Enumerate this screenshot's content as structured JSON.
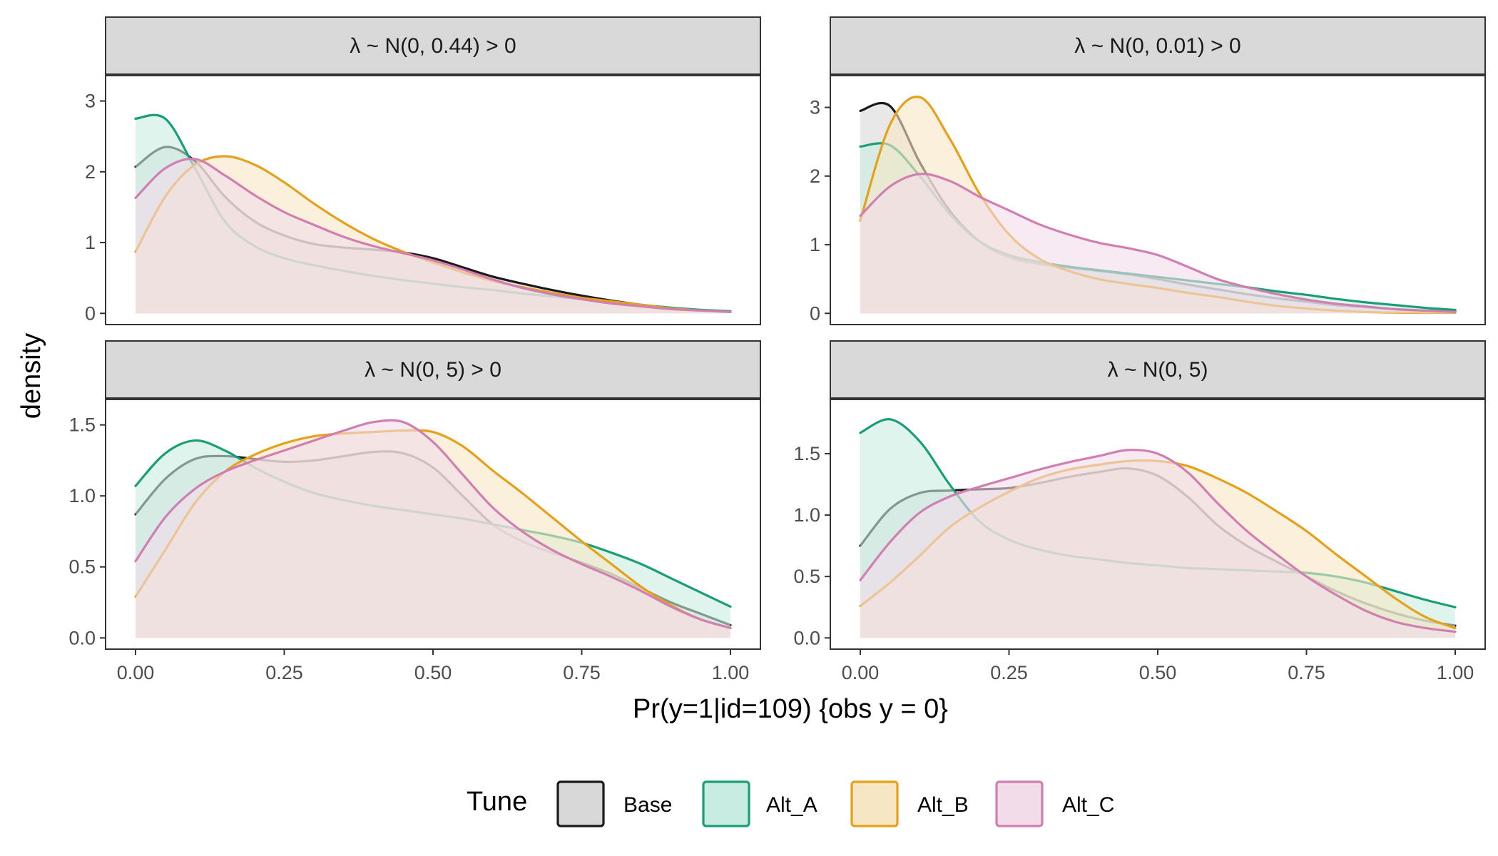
{
  "chart_data": {
    "type": "area",
    "xlabel": "Pr(y=1|id=109) {obs y = 0}",
    "ylabel": "density",
    "xlim": [
      0,
      1
    ],
    "x_ticks": [
      0,
      0.25,
      0.5,
      0.75,
      1
    ],
    "x_tick_labels": [
      "0.00",
      "0.25",
      "0.50",
      "0.75",
      "1.00"
    ],
    "x": [
      0,
      0.05,
      0.1,
      0.15,
      0.2,
      0.25,
      0.3,
      0.35,
      0.4,
      0.45,
      0.5,
      0.55,
      0.6,
      0.65,
      0.7,
      0.75,
      0.8,
      0.85,
      0.9,
      0.95,
      1
    ],
    "legend": {
      "title": "Tune",
      "position": "bottom",
      "entries": [
        "Base",
        "Alt_A",
        "Alt_B",
        "Alt_C"
      ]
    },
    "series_colors": {
      "Base": "#1a1a1a",
      "Alt_A": "#1b9e77",
      "Alt_B": "#e6a11a",
      "Alt_C": "#d07fb0"
    },
    "fill_colors": {
      "Base": "#d8d8d8",
      "Alt_A": "#c8ece1",
      "Alt_B": "#f7e6c4",
      "Alt_C": "#f2dcea"
    },
    "panels": [
      {
        "title": "λ ~ N(0, 0.44) > 0",
        "ylim": [
          0,
          3.2
        ],
        "y_ticks": [
          0,
          1,
          2,
          3
        ],
        "y_tick_labels": [
          "0",
          "1",
          "2",
          "3"
        ],
        "series": [
          {
            "name": "Base",
            "values": [
              2.07,
              2.35,
              2.15,
              1.65,
              1.3,
              1.1,
              0.98,
              0.93,
              0.9,
              0.86,
              0.78,
              0.65,
              0.52,
              0.42,
              0.33,
              0.25,
              0.18,
              0.12,
              0.07,
              0.04,
              0.02
            ]
          },
          {
            "name": "Alt_A",
            "values": [
              2.75,
              2.75,
              2.05,
              1.3,
              0.95,
              0.78,
              0.68,
              0.6,
              0.53,
              0.47,
              0.42,
              0.37,
              0.33,
              0.28,
              0.24,
              0.2,
              0.16,
              0.12,
              0.08,
              0.05,
              0.03
            ]
          },
          {
            "name": "Alt_B",
            "values": [
              0.87,
              1.65,
              2.1,
              2.22,
              2.1,
              1.85,
              1.55,
              1.28,
              1.05,
              0.87,
              0.72,
              0.58,
              0.46,
              0.37,
              0.29,
              0.22,
              0.17,
              0.12,
              0.07,
              0.04,
              0.02
            ]
          },
          {
            "name": "Alt_C",
            "values": [
              1.63,
              2.05,
              2.18,
              1.95,
              1.67,
              1.43,
              1.25,
              1.08,
              0.95,
              0.85,
              0.75,
              0.62,
              0.48,
              0.36,
              0.27,
              0.2,
              0.14,
              0.1,
              0.06,
              0.04,
              0.02
            ]
          }
        ]
      },
      {
        "title": "λ ~ N(0, 0.01) > 0",
        "ylim": [
          0,
          3.3
        ],
        "y_ticks": [
          0,
          1,
          2,
          3
        ],
        "y_tick_labels": [
          "0",
          "1",
          "2",
          "3"
        ],
        "series": [
          {
            "name": "Base",
            "values": [
              2.95,
              3.02,
              2.2,
              1.5,
              1.05,
              0.82,
              0.72,
              0.67,
              0.62,
              0.57,
              0.5,
              0.42,
              0.35,
              0.28,
              0.22,
              0.17,
              0.12,
              0.09,
              0.06,
              0.04,
              0.03
            ]
          },
          {
            "name": "Alt_A",
            "values": [
              2.43,
              2.45,
              2.0,
              1.45,
              1.05,
              0.85,
              0.75,
              0.68,
              0.63,
              0.58,
              0.53,
              0.48,
              0.43,
              0.38,
              0.32,
              0.27,
              0.21,
              0.16,
              0.12,
              0.08,
              0.05
            ]
          },
          {
            "name": "Alt_B",
            "values": [
              1.35,
              2.75,
              3.15,
              2.55,
              1.75,
              1.15,
              0.8,
              0.62,
              0.5,
              0.43,
              0.37,
              0.3,
              0.24,
              0.17,
              0.11,
              0.07,
              0.04,
              0.02,
              0.01,
              0.01,
              0.01
            ]
          },
          {
            "name": "Alt_C",
            "values": [
              1.42,
              1.85,
              2.03,
              1.93,
              1.7,
              1.5,
              1.3,
              1.15,
              1.03,
              0.95,
              0.85,
              0.68,
              0.5,
              0.38,
              0.28,
              0.2,
              0.14,
              0.1,
              0.06,
              0.04,
              0.02
            ]
          }
        ]
      },
      {
        "title": "λ ~ N(0, 5) > 0",
        "ylim": [
          0,
          1.6
        ],
        "y_ticks": [
          0,
          0.5,
          1,
          1.5
        ],
        "y_tick_labels": [
          "0.0",
          "0.5",
          "1.0",
          "1.5"
        ],
        "series": [
          {
            "name": "Base",
            "values": [
              0.87,
              1.12,
              1.26,
              1.28,
              1.26,
              1.24,
              1.25,
              1.28,
              1.31,
              1.3,
              1.2,
              1.0,
              0.8,
              0.68,
              0.6,
              0.53,
              0.45,
              0.35,
              0.25,
              0.17,
              0.09
            ]
          },
          {
            "name": "Alt_A",
            "values": [
              1.07,
              1.3,
              1.39,
              1.32,
              1.2,
              1.1,
              1.02,
              0.97,
              0.93,
              0.9,
              0.87,
              0.84,
              0.8,
              0.76,
              0.72,
              0.67,
              0.6,
              0.52,
              0.42,
              0.32,
              0.22
            ]
          },
          {
            "name": "Alt_B",
            "values": [
              0.29,
              0.62,
              0.95,
              1.17,
              1.29,
              1.37,
              1.42,
              1.44,
              1.45,
              1.46,
              1.45,
              1.35,
              1.18,
              1.02,
              0.85,
              0.68,
              0.52,
              0.36,
              0.23,
              0.13,
              0.07
            ]
          },
          {
            "name": "Alt_C",
            "values": [
              0.54,
              0.85,
              1.05,
              1.17,
              1.25,
              1.32,
              1.39,
              1.46,
              1.52,
              1.52,
              1.38,
              1.15,
              0.92,
              0.75,
              0.62,
              0.52,
              0.43,
              0.33,
              0.22,
              0.13,
              0.07
            ]
          }
        ]
      },
      {
        "title": "λ ~ N(0, 5)",
        "ylim": [
          0,
          1.85
        ],
        "y_ticks": [
          0,
          0.5,
          1,
          1.5
        ],
        "y_tick_labels": [
          "0.0",
          "0.5",
          "1.0",
          "1.5"
        ],
        "series": [
          {
            "name": "Base",
            "values": [
              0.75,
              1.05,
              1.18,
              1.2,
              1.21,
              1.22,
              1.26,
              1.31,
              1.35,
              1.38,
              1.32,
              1.15,
              0.92,
              0.75,
              0.62,
              0.5,
              0.38,
              0.28,
              0.2,
              0.14,
              0.1
            ]
          },
          {
            "name": "Alt_A",
            "values": [
              1.67,
              1.78,
              1.6,
              1.25,
              0.95,
              0.8,
              0.72,
              0.67,
              0.64,
              0.61,
              0.59,
              0.57,
              0.56,
              0.55,
              0.54,
              0.53,
              0.5,
              0.45,
              0.38,
              0.31,
              0.25
            ]
          },
          {
            "name": "Alt_B",
            "values": [
              0.26,
              0.45,
              0.67,
              0.9,
              1.06,
              1.19,
              1.3,
              1.37,
              1.41,
              1.44,
              1.44,
              1.4,
              1.3,
              1.18,
              1.03,
              0.87,
              0.68,
              0.5,
              0.32,
              0.17,
              0.08
            ]
          },
          {
            "name": "Alt_C",
            "values": [
              0.47,
              0.78,
              1.02,
              1.15,
              1.23,
              1.3,
              1.37,
              1.43,
              1.48,
              1.53,
              1.5,
              1.35,
              1.1,
              0.87,
              0.68,
              0.5,
              0.35,
              0.22,
              0.13,
              0.08,
              0.05
            ]
          }
        ]
      }
    ]
  }
}
